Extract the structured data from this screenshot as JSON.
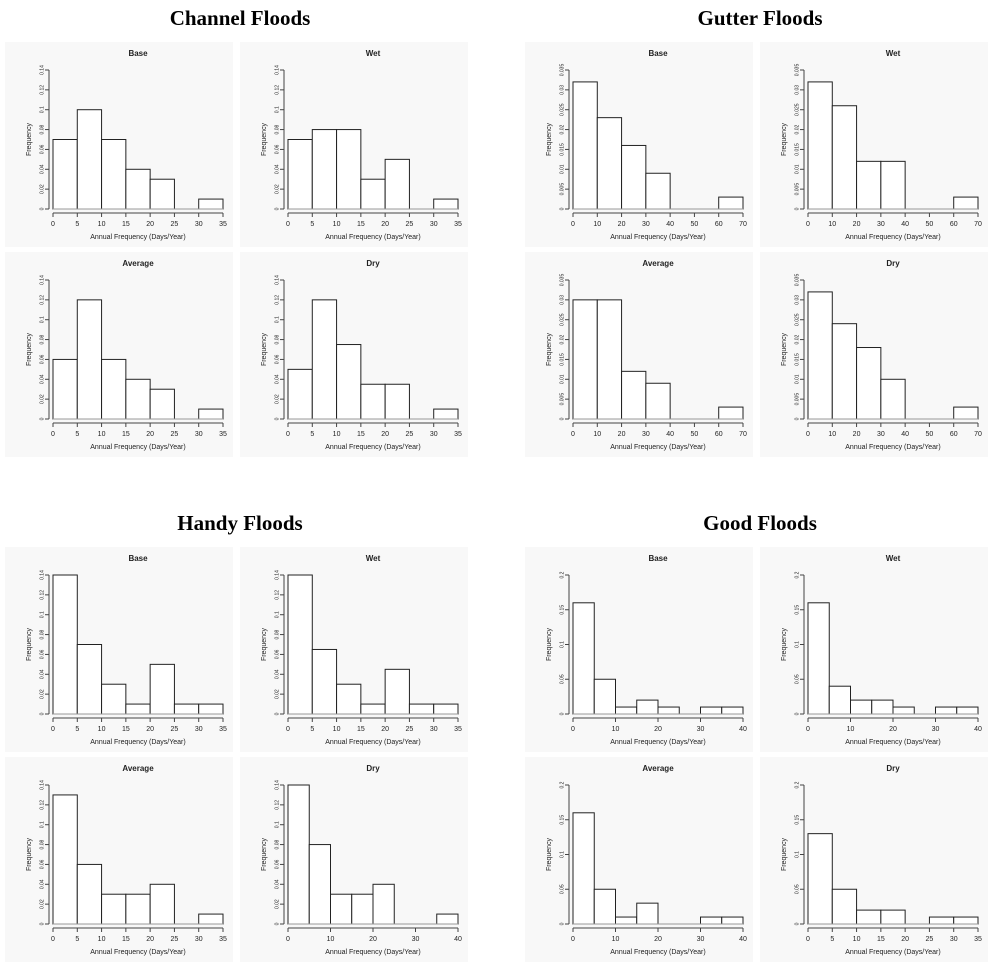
{
  "sections": [
    {
      "title": "Channel Floods",
      "chart_data": [
        {
          "type": "histogram",
          "title": "Base",
          "xlabel": "Annual Frequency (Days/Year)",
          "ylabel": "Frequency",
          "bins": [
            0,
            5,
            10,
            15,
            20,
            25,
            30,
            35
          ],
          "values": [
            0.07,
            0.1,
            0.07,
            0.04,
            0.03,
            0,
            0.01
          ],
          "xlim": [
            0,
            35
          ],
          "xticks": [
            0,
            5,
            10,
            15,
            20,
            25,
            30,
            35
          ],
          "ylim": [
            0,
            0.14
          ],
          "yticks": [
            0,
            0.02,
            0.04,
            0.06,
            0.08,
            0.1,
            0.12,
            0.14
          ]
        },
        {
          "type": "histogram",
          "title": "Wet",
          "xlabel": "Annual Frequency (Days/Year)",
          "ylabel": "Frequency",
          "bins": [
            0,
            5,
            10,
            15,
            20,
            25,
            30,
            35
          ],
          "values": [
            0.07,
            0.08,
            0.08,
            0.03,
            0.05,
            0,
            0.01
          ],
          "xlim": [
            0,
            35
          ],
          "xticks": [
            0,
            5,
            10,
            15,
            20,
            25,
            30,
            35
          ],
          "ylim": [
            0,
            0.14
          ],
          "yticks": [
            0,
            0.02,
            0.04,
            0.06,
            0.08,
            0.1,
            0.12,
            0.14
          ]
        },
        {
          "type": "histogram",
          "title": "Average",
          "xlabel": "Annual Frequency (Days/Year)",
          "ylabel": "Frequency",
          "bins": [
            0,
            5,
            10,
            15,
            20,
            25,
            30,
            35
          ],
          "values": [
            0.06,
            0.12,
            0.06,
            0.04,
            0.03,
            0,
            0.01
          ],
          "xlim": [
            0,
            35
          ],
          "xticks": [
            0,
            5,
            10,
            15,
            20,
            25,
            30,
            35
          ],
          "ylim": [
            0,
            0.14
          ],
          "yticks": [
            0,
            0.02,
            0.04,
            0.06,
            0.08,
            0.1,
            0.12,
            0.14
          ]
        },
        {
          "type": "histogram",
          "title": "Dry",
          "xlabel": "Annual Frequency (Days/Year)",
          "ylabel": "Frequency",
          "bins": [
            0,
            5,
            10,
            15,
            20,
            25,
            30,
            35
          ],
          "values": [
            0.05,
            0.12,
            0.075,
            0.035,
            0.035,
            0,
            0.01
          ],
          "xlim": [
            0,
            35
          ],
          "xticks": [
            0,
            5,
            10,
            15,
            20,
            25,
            30,
            35
          ],
          "ylim": [
            0,
            0.14
          ],
          "yticks": [
            0,
            0.02,
            0.04,
            0.06,
            0.08,
            0.1,
            0.12,
            0.14
          ]
        }
      ]
    },
    {
      "title": "Gutter Floods",
      "chart_data": [
        {
          "type": "histogram",
          "title": "Base",
          "xlabel": "Annual Frequency (Days/Year)",
          "ylabel": "Frequency",
          "bins": [
            0,
            10,
            20,
            30,
            40,
            50,
            60,
            70
          ],
          "values": [
            0.032,
            0.023,
            0.016,
            0.009,
            0,
            0,
            0.003
          ],
          "xlim": [
            0,
            70
          ],
          "xticks": [
            0,
            10,
            20,
            30,
            40,
            50,
            60,
            70
          ],
          "ylim": [
            0,
            0.035
          ],
          "yticks": [
            0,
            0.005,
            0.01,
            0.015,
            0.02,
            0.025,
            0.03,
            0.035
          ]
        },
        {
          "type": "histogram",
          "title": "Wet",
          "xlabel": "Annual Frequency (Days/Year)",
          "ylabel": "Frequency",
          "bins": [
            0,
            10,
            20,
            30,
            40,
            50,
            60,
            70
          ],
          "values": [
            0.032,
            0.026,
            0.012,
            0.012,
            0,
            0,
            0.003
          ],
          "xlim": [
            0,
            70
          ],
          "xticks": [
            0,
            10,
            20,
            30,
            40,
            50,
            60,
            70
          ],
          "ylim": [
            0,
            0.035
          ],
          "yticks": [
            0,
            0.005,
            0.01,
            0.015,
            0.02,
            0.025,
            0.03,
            0.035
          ]
        },
        {
          "type": "histogram",
          "title": "Average",
          "xlabel": "Annual Frequency (Days/Year)",
          "ylabel": "Frequency",
          "bins": [
            0,
            10,
            20,
            30,
            40,
            50,
            60,
            70
          ],
          "values": [
            0.03,
            0.03,
            0.012,
            0.009,
            0,
            0,
            0.003
          ],
          "xlim": [
            0,
            70
          ],
          "xticks": [
            0,
            10,
            20,
            30,
            40,
            50,
            60,
            70
          ],
          "ylim": [
            0,
            0.035
          ],
          "yticks": [
            0,
            0.005,
            0.01,
            0.015,
            0.02,
            0.025,
            0.03,
            0.035
          ]
        },
        {
          "type": "histogram",
          "title": "Dry",
          "xlabel": "Annual Frequency (Days/Year)",
          "ylabel": "Frequency",
          "bins": [
            0,
            10,
            20,
            30,
            40,
            50,
            60,
            70
          ],
          "values": [
            0.032,
            0.024,
            0.018,
            0.01,
            0,
            0,
            0.003
          ],
          "xlim": [
            0,
            70
          ],
          "xticks": [
            0,
            10,
            20,
            30,
            40,
            50,
            60,
            70
          ],
          "ylim": [
            0,
            0.035
          ],
          "yticks": [
            0,
            0.005,
            0.01,
            0.015,
            0.02,
            0.025,
            0.03,
            0.035
          ]
        }
      ]
    },
    {
      "title": "Handy Floods",
      "chart_data": [
        {
          "type": "histogram",
          "title": "Base",
          "xlabel": "Annual Frequency (Days/Year)",
          "ylabel": "Frequency",
          "bins": [
            0,
            5,
            10,
            15,
            20,
            25,
            30,
            35
          ],
          "values": [
            0.14,
            0.07,
            0.03,
            0.01,
            0.05,
            0.01,
            0.01
          ],
          "xlim": [
            0,
            35
          ],
          "xticks": [
            0,
            5,
            10,
            15,
            20,
            25,
            30,
            35
          ],
          "ylim": [
            0,
            0.14
          ],
          "yticks": [
            0,
            0.02,
            0.04,
            0.06,
            0.08,
            0.1,
            0.12,
            0.14
          ]
        },
        {
          "type": "histogram",
          "title": "Wet",
          "xlabel": "Annual Frequency (Days/Year)",
          "ylabel": "Frequency",
          "bins": [
            0,
            5,
            10,
            15,
            20,
            25,
            30,
            35
          ],
          "values": [
            0.14,
            0.065,
            0.03,
            0.01,
            0.045,
            0.01,
            0.01
          ],
          "xlim": [
            0,
            35
          ],
          "xticks": [
            0,
            5,
            10,
            15,
            20,
            25,
            30,
            35
          ],
          "ylim": [
            0,
            0.14
          ],
          "yticks": [
            0,
            0.02,
            0.04,
            0.06,
            0.08,
            0.1,
            0.12,
            0.14
          ]
        },
        {
          "type": "histogram",
          "title": "Average",
          "xlabel": "Annual Frequency (Days/Year)",
          "ylabel": "Frequency",
          "bins": [
            0,
            5,
            10,
            15,
            20,
            25,
            30,
            35
          ],
          "values": [
            0.13,
            0.06,
            0.03,
            0.03,
            0.04,
            0,
            0.01
          ],
          "xlim": [
            0,
            35
          ],
          "xticks": [
            0,
            5,
            10,
            15,
            20,
            25,
            30,
            35
          ],
          "ylim": [
            0,
            0.14
          ],
          "yticks": [
            0,
            0.02,
            0.04,
            0.06,
            0.08,
            0.1,
            0.12,
            0.14
          ]
        },
        {
          "type": "histogram",
          "title": "Dry",
          "xlabel": "Annual Frequency (Days/Year)",
          "ylabel": "Frequency",
          "bins": [
            0,
            5,
            10,
            15,
            20,
            25,
            30,
            35,
            40
          ],
          "values": [
            0.14,
            0.08,
            0.03,
            0.03,
            0.04,
            0,
            0,
            0.01
          ],
          "xlim": [
            0,
            40
          ],
          "xticks": [
            0,
            10,
            20,
            30,
            40
          ],
          "ylim": [
            0,
            0.14
          ],
          "yticks": [
            0,
            0.02,
            0.04,
            0.06,
            0.08,
            0.1,
            0.12,
            0.14
          ]
        }
      ]
    },
    {
      "title": "Good Floods",
      "chart_data": [
        {
          "type": "histogram",
          "title": "Base",
          "xlabel": "Annual Frequency (Days/Year)",
          "ylabel": "Frequency",
          "bins": [
            0,
            5,
            10,
            15,
            20,
            25,
            30,
            35,
            40
          ],
          "values": [
            0.16,
            0.05,
            0.01,
            0.02,
            0.01,
            0,
            0.01,
            0.01
          ],
          "xlim": [
            0,
            40
          ],
          "xticks": [
            0,
            10,
            20,
            30,
            40
          ],
          "ylim": [
            0,
            0.2
          ],
          "yticks": [
            0,
            0.05,
            0.1,
            0.15,
            0.2
          ]
        },
        {
          "type": "histogram",
          "title": "Wet",
          "xlabel": "Annual Frequency (Days/Year)",
          "ylabel": "Frequency",
          "bins": [
            0,
            5,
            10,
            15,
            20,
            25,
            30,
            35,
            40
          ],
          "values": [
            0.16,
            0.04,
            0.02,
            0.02,
            0.01,
            0,
            0.01,
            0.01
          ],
          "xlim": [
            0,
            40
          ],
          "xticks": [
            0,
            10,
            20,
            30,
            40
          ],
          "ylim": [
            0,
            0.2
          ],
          "yticks": [
            0,
            0.05,
            0.1,
            0.15,
            0.2
          ]
        },
        {
          "type": "histogram",
          "title": "Average",
          "xlabel": "Annual Frequency (Days/Year)",
          "ylabel": "Frequency",
          "bins": [
            0,
            5,
            10,
            15,
            20,
            25,
            30,
            35,
            40
          ],
          "values": [
            0.16,
            0.05,
            0.01,
            0.03,
            0,
            0,
            0.01,
            0.01
          ],
          "xlim": [
            0,
            40
          ],
          "xticks": [
            0,
            10,
            20,
            30,
            40
          ],
          "ylim": [
            0,
            0.2
          ],
          "yticks": [
            0,
            0.05,
            0.1,
            0.15,
            0.2
          ]
        },
        {
          "type": "histogram",
          "title": "Dry",
          "xlabel": "Annual Frequency (Days/Year)",
          "ylabel": "Frequency",
          "bins": [
            0,
            5,
            10,
            15,
            20,
            25,
            30,
            35
          ],
          "values": [
            0.13,
            0.05,
            0.02,
            0.02,
            0,
            0.01,
            0.01
          ],
          "xlim": [
            0,
            35
          ],
          "xticks": [
            0,
            5,
            10,
            15,
            20,
            25,
            30,
            35
          ],
          "ylim": [
            0,
            0.2
          ],
          "yticks": [
            0,
            0.05,
            0.1,
            0.15,
            0.2
          ]
        }
      ]
    }
  ]
}
